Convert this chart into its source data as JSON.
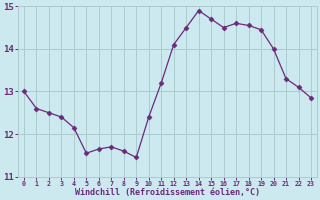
{
  "x": [
    0,
    1,
    2,
    3,
    4,
    5,
    6,
    7,
    8,
    9,
    10,
    11,
    12,
    13,
    14,
    15,
    16,
    17,
    18,
    19,
    20,
    21,
    22,
    23
  ],
  "y": [
    13.0,
    12.6,
    12.5,
    12.4,
    12.15,
    11.55,
    11.65,
    11.7,
    11.6,
    11.45,
    12.4,
    13.2,
    14.1,
    14.5,
    14.9,
    14.7,
    14.5,
    14.6,
    14.55,
    14.45,
    14.0,
    13.3,
    13.1,
    12.85
  ],
  "line_color": "#6b2a7a",
  "marker": "D",
  "marker_size": 2.5,
  "bg_color": "#cce9f0",
  "grid_color": "#aacccc",
  "xlabel": "Windchill (Refroidissement éolien,°C)",
  "xlabel_color": "#6b2a7a",
  "tick_color": "#6b2a7a",
  "ylim": [
    11.0,
    15.0
  ],
  "xlim": [
    -0.5,
    23.5
  ],
  "yticks": [
    11,
    12,
    13,
    14,
    15
  ],
  "xtick_labels": [
    "0",
    "1",
    "2",
    "3",
    "4",
    "5",
    "6",
    "7",
    "8",
    "9",
    "10",
    "11",
    "12",
    "13",
    "14",
    "15",
    "16",
    "17",
    "18",
    "19",
    "20",
    "21",
    "22",
    "23"
  ]
}
